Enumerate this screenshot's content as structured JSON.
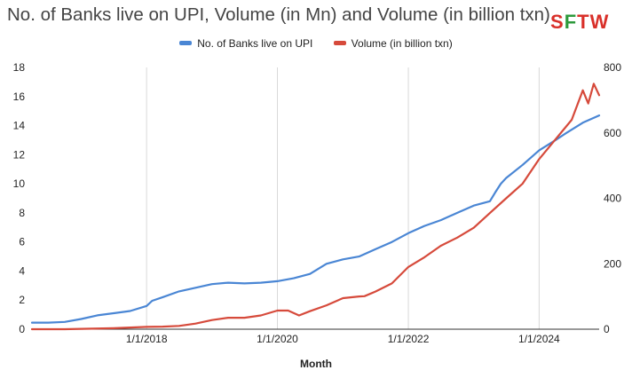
{
  "page": {
    "title": "No. of Banks live on UPI, Volume (in Mn) and Volume (in billion txn)",
    "logo": {
      "s": "S",
      "f": "F",
      "t": "T",
      "w": "W"
    }
  },
  "chart_data": {
    "type": "line",
    "title": "No. of Banks live on UPI, Volume (in Mn) and Volume (in billion txn)",
    "xlabel": "Month",
    "ylabel_left": "",
    "ylabel_right": "",
    "x_range": [
      "2016-04-01",
      "2024-12-01"
    ],
    "x_ticks": [
      "1/1/2018",
      "1/1/2020",
      "1/1/2022",
      "1/1/2024"
    ],
    "y_left": {
      "min": 0,
      "max": 18,
      "ticks": [
        "0",
        "2",
        "4",
        "6",
        "8",
        "10",
        "12",
        "14",
        "16",
        "18"
      ]
    },
    "y_right": {
      "min": 0,
      "max": 800,
      "ticks": [
        "0",
        "200",
        "400",
        "600",
        "800"
      ]
    },
    "grid": "vertical",
    "legend": "top",
    "series": [
      {
        "name": "No. of Banks live on UPI",
        "axis": "left",
        "color": "#4a86d4",
        "points": [
          [
            "2016-04-01",
            0.45
          ],
          [
            "2016-07-01",
            0.45
          ],
          [
            "2016-10-01",
            0.5
          ],
          [
            "2017-01-01",
            0.7
          ],
          [
            "2017-04-01",
            0.95
          ],
          [
            "2017-07-01",
            1.1
          ],
          [
            "2017-10-01",
            1.25
          ],
          [
            "2018-01-01",
            1.6
          ],
          [
            "2018-02-01",
            1.95
          ],
          [
            "2018-04-01",
            2.2
          ],
          [
            "2018-07-01",
            2.6
          ],
          [
            "2018-10-01",
            2.85
          ],
          [
            "2019-01-01",
            3.1
          ],
          [
            "2019-04-01",
            3.2
          ],
          [
            "2019-07-01",
            3.15
          ],
          [
            "2019-10-01",
            3.2
          ],
          [
            "2020-01-01",
            3.3
          ],
          [
            "2020-04-01",
            3.5
          ],
          [
            "2020-07-01",
            3.8
          ],
          [
            "2020-10-01",
            4.5
          ],
          [
            "2021-01-01",
            4.8
          ],
          [
            "2021-04-01",
            5.0
          ],
          [
            "2021-07-01",
            5.5
          ],
          [
            "2021-10-01",
            6.0
          ],
          [
            "2022-01-01",
            6.6
          ],
          [
            "2022-04-01",
            7.1
          ],
          [
            "2022-07-01",
            7.5
          ],
          [
            "2022-10-01",
            8.0
          ],
          [
            "2023-01-01",
            8.5
          ],
          [
            "2023-04-01",
            8.8
          ],
          [
            "2023-05-01",
            9.4
          ],
          [
            "2023-06-01",
            10.0
          ],
          [
            "2023-07-01",
            10.4
          ],
          [
            "2023-10-01",
            11.3
          ],
          [
            "2024-01-01",
            12.3
          ],
          [
            "2024-04-01",
            13.0
          ],
          [
            "2024-06-01",
            13.5
          ],
          [
            "2024-09-01",
            14.2
          ],
          [
            "2024-12-01",
            14.7
          ]
        ]
      },
      {
        "name": "Volume (in billion txn)",
        "axis": "right",
        "color": "#d64a3b",
        "points": [
          [
            "2016-04-01",
            0
          ],
          [
            "2016-10-01",
            0
          ],
          [
            "2017-01-01",
            1
          ],
          [
            "2017-07-01",
            3
          ],
          [
            "2018-01-01",
            7
          ],
          [
            "2018-04-01",
            8
          ],
          [
            "2018-07-01",
            10
          ],
          [
            "2018-10-01",
            17
          ],
          [
            "2019-01-01",
            28
          ],
          [
            "2019-04-01",
            35
          ],
          [
            "2019-07-01",
            35
          ],
          [
            "2019-10-01",
            42
          ],
          [
            "2020-01-01",
            57
          ],
          [
            "2020-03-01",
            57
          ],
          [
            "2020-05-01",
            42
          ],
          [
            "2020-07-01",
            55
          ],
          [
            "2020-10-01",
            73
          ],
          [
            "2021-01-01",
            95
          ],
          [
            "2021-04-01",
            100
          ],
          [
            "2021-05-01",
            101
          ],
          [
            "2021-07-01",
            115
          ],
          [
            "2021-10-01",
            140
          ],
          [
            "2022-01-01",
            190
          ],
          [
            "2022-04-01",
            220
          ],
          [
            "2022-07-01",
            255
          ],
          [
            "2022-10-01",
            280
          ],
          [
            "2023-01-01",
            310
          ],
          [
            "2023-04-01",
            355
          ],
          [
            "2023-07-01",
            400
          ],
          [
            "2023-10-01",
            445
          ],
          [
            "2024-01-01",
            520
          ],
          [
            "2024-04-01",
            580
          ],
          [
            "2024-07-01",
            640
          ],
          [
            "2024-09-01",
            730
          ],
          [
            "2024-10-01",
            690
          ],
          [
            "2024-11-01",
            750
          ],
          [
            "2024-12-01",
            715
          ]
        ]
      }
    ]
  }
}
